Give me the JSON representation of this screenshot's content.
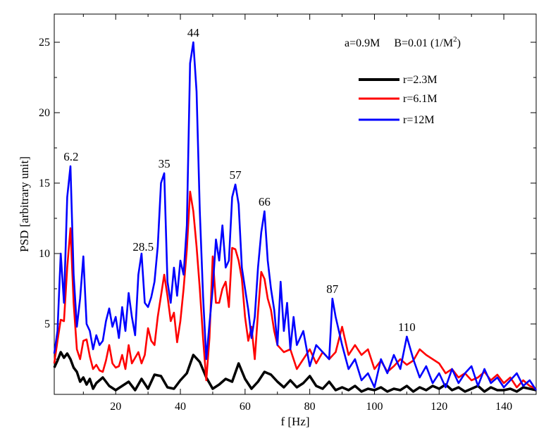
{
  "chart_data": {
    "type": "line",
    "title": "",
    "xlabel": "f [Hz]",
    "ylabel": "PSD [arbitrary unit]",
    "xlim": [
      1,
      150
    ],
    "ylim": [
      0,
      27
    ],
    "xticks": [
      20,
      40,
      60,
      80,
      100,
      120,
      140
    ],
    "yticks": [
      5,
      10,
      15,
      20,
      25
    ],
    "grid": false,
    "legend_position": "top-right",
    "annotation": {
      "text_a": "a=0.9M",
      "text_b_prefix": "B=0.01 (1/M",
      "text_b_sup": "2",
      "text_b_suffix": ")"
    },
    "peak_labels": [
      {
        "text": "6.2",
        "x": 6.2,
        "y": 16.2
      },
      {
        "text": "28.5",
        "x": 28.5,
        "y": 9.8
      },
      {
        "text": "35",
        "x": 35,
        "y": 15.7
      },
      {
        "text": "44",
        "x": 44,
        "y": 25.0
      },
      {
        "text": "57",
        "x": 57,
        "y": 14.9
      },
      {
        "text": "66",
        "x": 66,
        "y": 13.0
      },
      {
        "text": "87",
        "x": 87,
        "y": 6.8
      },
      {
        "text": "110",
        "x": 110,
        "y": 4.1
      }
    ],
    "series": [
      {
        "name": "r=2.3M",
        "color": "#000000",
        "x": [
          1,
          2,
          3,
          4,
          5,
          6,
          7,
          8,
          9,
          10,
          11,
          12,
          13,
          14,
          16,
          18,
          20,
          22,
          24,
          26,
          28,
          30,
          32,
          34,
          36,
          38,
          40,
          42,
          44,
          46,
          48,
          50,
          52,
          54,
          56,
          58,
          60,
          62,
          64,
          66,
          68,
          70,
          72,
          74,
          76,
          78,
          80,
          82,
          84,
          86,
          88,
          90,
          92,
          94,
          96,
          98,
          100,
          102,
          104,
          106,
          108,
          110,
          112,
          114,
          116,
          118,
          120,
          122,
          124,
          126,
          128,
          130,
          132,
          134,
          136,
          138,
          140,
          142,
          144,
          146,
          148,
          150
        ],
        "y": [
          1.9,
          2.4,
          3.0,
          2.6,
          2.9,
          2.5,
          1.9,
          1.6,
          0.9,
          1.2,
          0.7,
          1.1,
          0.4,
          0.8,
          1.2,
          0.6,
          0.3,
          0.6,
          0.9,
          0.3,
          1.1,
          0.4,
          1.4,
          1.3,
          0.5,
          0.4,
          1.0,
          1.5,
          2.8,
          2.3,
          1.2,
          0.4,
          0.7,
          1.1,
          0.9,
          2.2,
          1.1,
          0.4,
          0.9,
          1.6,
          1.4,
          0.9,
          0.5,
          1.0,
          0.5,
          0.8,
          1.3,
          0.6,
          0.4,
          0.9,
          0.3,
          0.5,
          0.3,
          0.6,
          0.2,
          0.4,
          0.3,
          0.5,
          0.2,
          0.4,
          0.3,
          0.6,
          0.2,
          0.5,
          0.3,
          0.6,
          0.4,
          0.7,
          0.3,
          0.5,
          0.2,
          0.4,
          0.6,
          0.2,
          0.5,
          0.3,
          0.3,
          0.4,
          0.2,
          0.5,
          0.4,
          0.3
        ]
      },
      {
        "name": "r=6.1M",
        "color": "#ff0000",
        "x": [
          1,
          2,
          3,
          4,
          5,
          6,
          7,
          8,
          9,
          10,
          11,
          12,
          13,
          14,
          15,
          16,
          17,
          18,
          19,
          20,
          21,
          22,
          23,
          24,
          25,
          26,
          27,
          28,
          29,
          30,
          31,
          32,
          33,
          34,
          35,
          36,
          37,
          38,
          39,
          40,
          41,
          42,
          43,
          44,
          45,
          46,
          47,
          48,
          49,
          50,
          51,
          52,
          53,
          54,
          55,
          56,
          57,
          58,
          59,
          60,
          61,
          62,
          63,
          64,
          65,
          66,
          67,
          68,
          69,
          70,
          72,
          74,
          76,
          78,
          80,
          82,
          84,
          86,
          88,
          90,
          92,
          94,
          96,
          98,
          100,
          102,
          104,
          106,
          108,
          110,
          112,
          114,
          116,
          118,
          120,
          122,
          124,
          126,
          128,
          130,
          132,
          134,
          136,
          138,
          140,
          142,
          144,
          146,
          148,
          150
        ],
        "y": [
          2.2,
          3.8,
          5.3,
          5.2,
          9.0,
          11.8,
          6.5,
          3.2,
          2.5,
          3.8,
          3.9,
          2.7,
          1.8,
          2.1,
          1.7,
          1.6,
          2.4,
          3.5,
          2.2,
          1.9,
          2.0,
          2.8,
          1.8,
          3.5,
          2.2,
          2.6,
          3.0,
          2.2,
          2.8,
          4.7,
          3.8,
          3.5,
          5.5,
          7.0,
          8.5,
          7.0,
          5.2,
          5.8,
          3.7,
          5.2,
          7.5,
          10.3,
          14.4,
          13.0,
          10.5,
          7.5,
          4.0,
          1.0,
          4.0,
          9.8,
          6.5,
          6.5,
          7.5,
          8.0,
          6.2,
          10.4,
          10.3,
          9.5,
          8.2,
          5.5,
          3.8,
          4.8,
          2.5,
          5.8,
          8.7,
          8.2,
          6.8,
          6.0,
          4.5,
          3.5,
          3.0,
          3.2,
          1.8,
          2.5,
          3.2,
          2.2,
          3.0,
          2.5,
          3.0,
          4.8,
          2.8,
          3.5,
          2.8,
          3.2,
          1.8,
          2.4,
          1.6,
          2.0,
          2.5,
          2.1,
          2.4,
          3.2,
          2.8,
          2.5,
          2.2,
          1.5,
          1.8,
          1.2,
          1.5,
          1.0,
          1.2,
          1.6,
          1.0,
          1.4,
          0.8,
          1.2,
          0.5,
          1.0,
          0.6,
          0.4
        ]
      },
      {
        "name": "r=12M",
        "color": "#0000ff",
        "x": [
          1,
          2,
          3,
          4,
          5,
          6,
          7,
          8,
          9,
          10,
          11,
          12,
          13,
          14,
          15,
          16,
          17,
          18,
          19,
          20,
          21,
          22,
          23,
          24,
          25,
          26,
          27,
          28,
          29,
          30,
          31,
          32,
          33,
          34,
          35,
          36,
          37,
          38,
          39,
          40,
          41,
          42,
          43,
          44,
          45,
          46,
          47,
          48,
          49,
          50,
          51,
          52,
          53,
          54,
          55,
          56,
          57,
          58,
          59,
          60,
          61,
          62,
          63,
          64,
          65,
          66,
          67,
          68,
          69,
          70,
          71,
          72,
          73,
          74,
          75,
          76,
          78,
          80,
          82,
          84,
          86,
          87,
          88,
          90,
          92,
          94,
          96,
          98,
          100,
          102,
          104,
          106,
          108,
          110,
          112,
          114,
          116,
          118,
          120,
          122,
          124,
          126,
          128,
          130,
          132,
          134,
          136,
          138,
          140,
          142,
          144,
          146,
          148,
          150
        ],
        "y": [
          2.9,
          4.5,
          10.0,
          6.5,
          14.0,
          16.2,
          8.5,
          4.8,
          6.8,
          9.8,
          5.0,
          4.5,
          3.2,
          4.2,
          3.5,
          3.8,
          5.2,
          6.1,
          4.8,
          5.5,
          4.0,
          6.2,
          4.5,
          7.2,
          5.5,
          4.2,
          8.5,
          10.0,
          6.5,
          6.2,
          6.9,
          8.0,
          10.5,
          15.0,
          15.7,
          8.0,
          6.5,
          9.0,
          7.0,
          9.5,
          8.5,
          12.0,
          23.5,
          25.0,
          21.5,
          13.0,
          7.0,
          2.5,
          5.0,
          7.5,
          11.0,
          9.5,
          12.0,
          9.0,
          9.5,
          14.0,
          14.9,
          13.5,
          9.0,
          7.5,
          6.0,
          4.0,
          5.5,
          9.0,
          11.5,
          13.0,
          9.5,
          7.5,
          6.0,
          3.5,
          8.0,
          4.5,
          6.5,
          3.2,
          5.5,
          3.5,
          4.5,
          2.0,
          3.5,
          3.0,
          2.5,
          6.8,
          5.5,
          3.5,
          1.8,
          2.5,
          1.0,
          1.5,
          0.5,
          2.5,
          1.5,
          2.8,
          1.8,
          4.1,
          2.5,
          1.2,
          2.0,
          0.8,
          1.5,
          0.5,
          1.8,
          0.8,
          1.5,
          2.0,
          0.6,
          1.8,
          0.8,
          1.2,
          0.5,
          1.0,
          1.5,
          0.6,
          1.0,
          0.3
        ]
      }
    ]
  }
}
